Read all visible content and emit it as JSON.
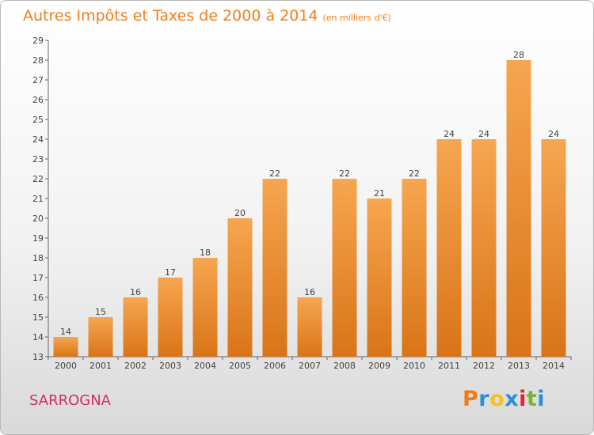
{
  "title": "Autres Impôts et Taxes de 2000 à 2014",
  "subtitle": "(en milliers d'€)",
  "commune": "SARROGNA",
  "logo": {
    "letters": [
      "P",
      "r",
      "o",
      "x",
      "i",
      "t",
      "i"
    ],
    "colors": [
      "#f07b14",
      "#2a8fd6",
      "#f0c419",
      "#2a8fd6",
      "#e2262f",
      "#6fb737",
      "#2a8fd6"
    ]
  },
  "colors": {
    "title": "#ef7f1a",
    "commune": "#cf2d6b",
    "bar_light": "#f6a650",
    "bar_dark": "#d97418"
  },
  "chart_data": {
    "type": "bar",
    "title": "Autres Impôts et Taxes de 2000 à 2014",
    "subtitle": "(en milliers d'€)",
    "categories": [
      "2000",
      "2001",
      "2002",
      "2003",
      "2004",
      "2005",
      "2006",
      "2007",
      "2008",
      "2009",
      "2010",
      "2011",
      "2012",
      "2013",
      "2014"
    ],
    "values": [
      14,
      15,
      16,
      17,
      18,
      20,
      22,
      16,
      22,
      21,
      22,
      24,
      24,
      28,
      24
    ],
    "ylim": [
      13,
      29
    ],
    "yticks": [
      13,
      14,
      15,
      16,
      17,
      18,
      19,
      20,
      21,
      22,
      23,
      24,
      25,
      26,
      27,
      28,
      29
    ],
    "grid": false,
    "legend": "none"
  }
}
